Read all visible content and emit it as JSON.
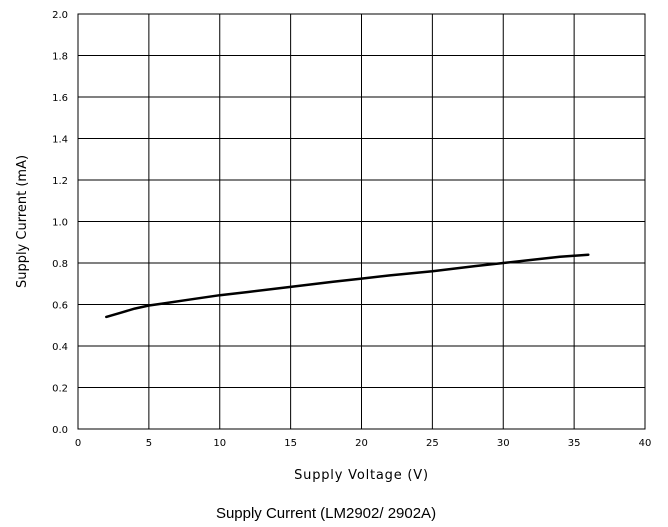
{
  "chart_data": {
    "type": "line",
    "title": "",
    "caption": "Supply Current (LM2902/ 2902A)",
    "xlabel": "Supply Voltage (V)",
    "ylabel": "Supply Current (mA)",
    "xlim": [
      0,
      40
    ],
    "ylim": [
      0.0,
      2.0
    ],
    "x_ticks": [
      "0",
      "5",
      "10",
      "15",
      "20",
      "25",
      "30",
      "35",
      "40"
    ],
    "y_ticks": [
      "0.0",
      "0.2",
      "0.4",
      "0.6",
      "0.8",
      "1.0",
      "1.2",
      "1.4",
      "1.6",
      "1.8",
      "2.0"
    ],
    "grid": true,
    "line_color": "#000000",
    "series": [
      {
        "x": [
          2,
          3,
          4,
          5,
          6,
          8,
          10,
          12,
          15,
          18,
          20,
          22,
          25,
          28,
          30,
          32,
          34,
          36
        ],
        "y": [
          0.54,
          0.56,
          0.58,
          0.595,
          0.605,
          0.625,
          0.645,
          0.66,
          0.685,
          0.71,
          0.725,
          0.74,
          0.76,
          0.785,
          0.8,
          0.815,
          0.83,
          0.84
        ]
      }
    ]
  }
}
